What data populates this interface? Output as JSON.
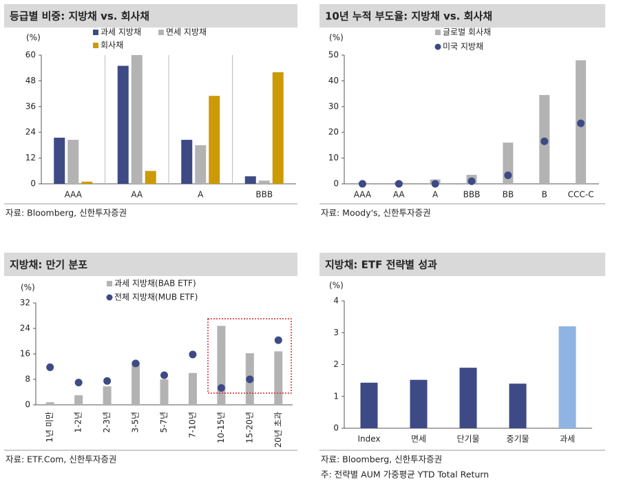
{
  "chart_data": [
    {
      "type": "bar",
      "title": "등급별 비중: 지방채 vs. 회사채",
      "ylabel": "(%)",
      "categories": [
        "AAA",
        "AA",
        "A",
        "BBB"
      ],
      "series": [
        {
          "name": "과세 지방채",
          "kind": "bar",
          "color": "#3d4a85",
          "values": [
            21.5,
            55,
            20.5,
            3.5
          ]
        },
        {
          "name": "면세 지방채",
          "kind": "bar",
          "color": "#b3b3b3",
          "values": [
            20.5,
            60,
            18,
            1.5
          ]
        },
        {
          "name": "회사채",
          "kind": "bar",
          "color": "#cc9a06",
          "values": [
            1,
            6,
            41,
            52
          ]
        }
      ],
      "ylim": [
        0,
        60
      ],
      "yticks": [
        0,
        12,
        24,
        36,
        48,
        60
      ],
      "source": "자료: Bloomberg, 신한투자증권"
    },
    {
      "type": "bar",
      "title": "10년 누적 부도율: 지방채 vs. 회사채",
      "ylabel": "(%)",
      "categories": [
        "AAA",
        "AA",
        "A",
        "BBB",
        "BB",
        "B",
        "CCC-C"
      ],
      "series": [
        {
          "name": "글로벌 회사채",
          "kind": "bar",
          "color": "#b3b3b3",
          "values": [
            0.4,
            0.5,
            1.7,
            3.5,
            16,
            34.5,
            48
          ]
        },
        {
          "name": "미국 지방채",
          "kind": "dot",
          "color": "#3d4a85",
          "values": [
            0,
            0,
            0,
            1,
            3.3,
            16.5,
            23.5
          ]
        }
      ],
      "ylim": [
        0,
        50
      ],
      "yticks": [
        0,
        10,
        20,
        30,
        40,
        50
      ],
      "source": "자료: Moody's, 신한투자증권"
    },
    {
      "type": "bar",
      "title": "지방채: 만기 분포",
      "ylabel": "(%)",
      "categories": [
        "1년 미만",
        "1-2년",
        "2-3년",
        "3-5년",
        "5-7년",
        "7-10년",
        "10-15년",
        "15-20년",
        "20년 초과"
      ],
      "series": [
        {
          "name": "과세 지방채(BAB ETF)",
          "kind": "bar",
          "color": "#b3b3b3",
          "values": [
            0.8,
            3,
            5.8,
            13.5,
            8,
            10,
            24.8,
            16.2,
            16.8
          ]
        },
        {
          "name": "전체 지방채(MUB ETF)",
          "kind": "dot",
          "color": "#3d4a85",
          "values": [
            11.8,
            7,
            7.5,
            13,
            9.3,
            15.8,
            5.3,
            8,
            20.3
          ]
        }
      ],
      "ylim": [
        0,
        32
      ],
      "yticks": [
        0,
        8,
        16,
        24,
        32
      ],
      "source": "자료: ETF.Com, 신한투자증권"
    },
    {
      "type": "bar",
      "title": "지방채: ETF 전략별 성과",
      "ylabel": "(%)",
      "categories": [
        "Index",
        "면세",
        "단기물",
        "중기물",
        "과세"
      ],
      "values": [
        1.43,
        1.52,
        1.9,
        1.4,
        3.2
      ],
      "colors": [
        "#3d4a85",
        "#3d4a85",
        "#3d4a85",
        "#3d4a85",
        "#8fb4e3"
      ],
      "ylim": [
        0,
        4
      ],
      "yticks": [
        0,
        1,
        2,
        3,
        4
      ],
      "source": "자료: Bloomberg, 신한투자증권",
      "footnote": "주: 전략별 AUM 가중평균 YTD Total Return"
    }
  ]
}
